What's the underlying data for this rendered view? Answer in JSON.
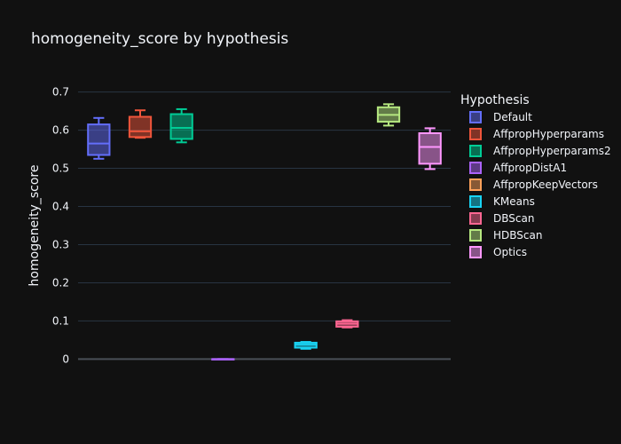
{
  "chart_data": {
    "type": "box",
    "title": "homogeneity_score by hypothesis",
    "xlabel": "",
    "ylabel": "homogeneity_score",
    "ylim": [
      -0.02,
      0.72
    ],
    "yticks": [
      0,
      0.1,
      0.2,
      0.3,
      0.4,
      0.5,
      0.6,
      0.7
    ],
    "ytick_labels": [
      "0",
      "0.1",
      "0.2",
      "0.3",
      "0.4",
      "0.5",
      "0.6",
      "0.7"
    ],
    "grid": true,
    "legend_title": "Hypothesis",
    "legend_position": "right",
    "series": [
      {
        "name": "Default",
        "color": "#636efa",
        "min": 0.525,
        "q1": 0.535,
        "median": 0.565,
        "q3": 0.615,
        "max": 0.632
      },
      {
        "name": "AffpropHyperparams",
        "color": "#ef553b",
        "min": 0.58,
        "q1": 0.582,
        "median": 0.597,
        "q3": 0.635,
        "max": 0.652
      },
      {
        "name": "AffpropHyperparams2",
        "color": "#00cc96",
        "min": 0.568,
        "q1": 0.577,
        "median": 0.606,
        "q3": 0.642,
        "max": 0.655
      },
      {
        "name": "AffpropDistA1",
        "color": "#ab63fa",
        "min": 0.0,
        "q1": 0.0,
        "median": 0.0,
        "q3": 0.0,
        "max": 0.0
      },
      {
        "name": "AffpropKeepVectors",
        "color": "#ffa15a",
        "min": null,
        "q1": null,
        "median": null,
        "q3": null,
        "max": null
      },
      {
        "name": "KMeans",
        "color": "#19d3f3",
        "min": 0.027,
        "q1": 0.03,
        "median": 0.038,
        "q3": 0.043,
        "max": 0.045
      },
      {
        "name": "DBScan",
        "color": "#ff6692",
        "min": 0.083,
        "q1": 0.085,
        "median": 0.093,
        "q3": 0.099,
        "max": 0.102
      },
      {
        "name": "HDBScan",
        "color": "#b6e880",
        "min": 0.612,
        "q1": 0.622,
        "median": 0.64,
        "q3": 0.66,
        "max": 0.668
      },
      {
        "name": "Optics",
        "color": "#ff97ff",
        "min": 0.498,
        "q1": 0.512,
        "median": 0.556,
        "q3": 0.592,
        "max": 0.605
      }
    ]
  }
}
